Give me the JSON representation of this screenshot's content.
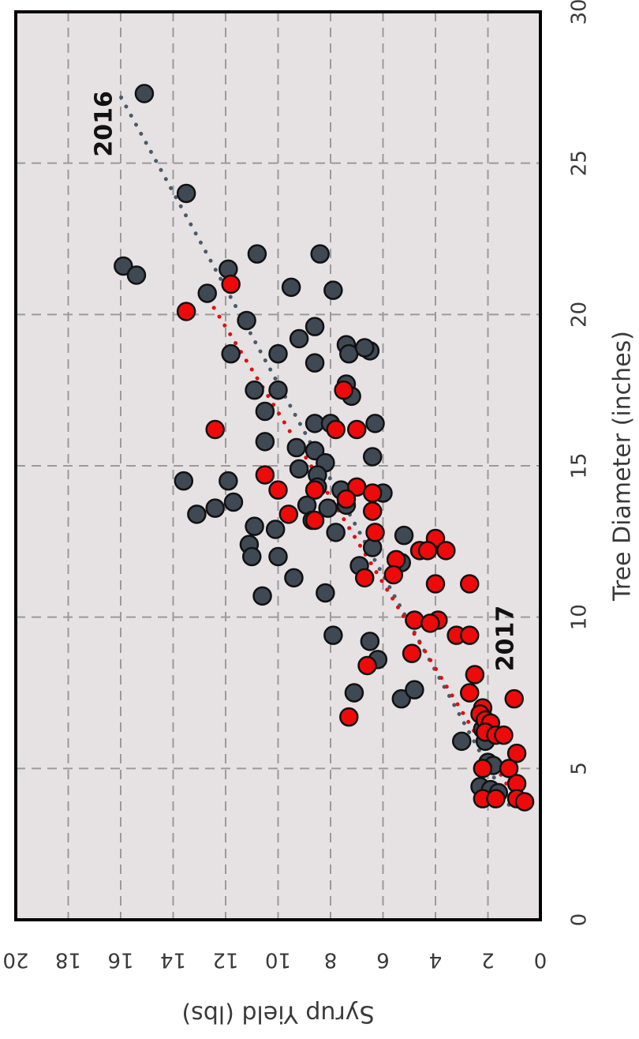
{
  "chart_data": {
    "type": "scatter",
    "title": "",
    "xlabel": "Tree Diameter (inches)",
    "ylabel": "Syrup Yield (lbs)",
    "xlim": [
      0,
      30
    ],
    "ylim": [
      0,
      20
    ],
    "xticks": [
      "0",
      "5",
      "10",
      "15",
      "20",
      "25",
      "30"
    ],
    "yticks": [
      "0",
      "2",
      "4",
      "6",
      "8",
      "10",
      "12",
      "14",
      "16",
      "18",
      "20"
    ],
    "grid": true,
    "orientation": "rotated 90 degrees (x axis runs vertically, y axis runs horizontally, text upside down)",
    "annotations": [
      {
        "text": "2016",
        "x": 26.3,
        "y": 16.6
      },
      {
        "text": "2017",
        "x": 9.3,
        "y": 1.3
      }
    ],
    "series": [
      {
        "color": "#3f4954",
        "points": [
          [
            27.3,
            15.1
          ],
          [
            24.0,
            13.5
          ],
          [
            21.6,
            15.9
          ],
          [
            21.3,
            15.4
          ],
          [
            22.0,
            10.8
          ],
          [
            22.0,
            8.4
          ],
          [
            21.5,
            11.9
          ],
          [
            20.7,
            12.7
          ],
          [
            20.9,
            9.5
          ],
          [
            20.8,
            7.9
          ],
          [
            19.8,
            11.2
          ],
          [
            19.6,
            8.6
          ],
          [
            19.2,
            9.2
          ],
          [
            19.0,
            7.4
          ],
          [
            18.7,
            11.8
          ],
          [
            18.7,
            10.0
          ],
          [
            18.4,
            8.6
          ],
          [
            18.7,
            7.3
          ],
          [
            18.8,
            6.5
          ],
          [
            18.9,
            6.7
          ],
          [
            17.7,
            7.4
          ],
          [
            17.5,
            10.9
          ],
          [
            17.5,
            10.0
          ],
          [
            17.3,
            7.2
          ],
          [
            16.8,
            10.5
          ],
          [
            16.4,
            8.6
          ],
          [
            16.4,
            8.0
          ],
          [
            16.4,
            6.3
          ],
          [
            15.8,
            10.5
          ],
          [
            15.6,
            9.3
          ],
          [
            15.5,
            8.6
          ],
          [
            15.3,
            6.4
          ],
          [
            15.1,
            8.2
          ],
          [
            14.9,
            9.2
          ],
          [
            14.7,
            8.5
          ],
          [
            14.5,
            13.6
          ],
          [
            14.5,
            11.9
          ],
          [
            14.3,
            8.5
          ],
          [
            14.2,
            7.6
          ],
          [
            14.1,
            6.0
          ],
          [
            13.8,
            11.7
          ],
          [
            13.6,
            12.4
          ],
          [
            13.7,
            8.9
          ],
          [
            13.6,
            8.1
          ],
          [
            13.7,
            7.4
          ],
          [
            13.4,
            13.1
          ],
          [
            13.2,
            8.7
          ],
          [
            13.0,
            10.9
          ],
          [
            12.9,
            10.1
          ],
          [
            12.8,
            7.8
          ],
          [
            12.7,
            5.2
          ],
          [
            12.4,
            11.1
          ],
          [
            12.3,
            6.4
          ],
          [
            12.0,
            11.0
          ],
          [
            12.0,
            10.0
          ],
          [
            11.8,
            5.3
          ],
          [
            11.7,
            6.9
          ],
          [
            11.3,
            9.4
          ],
          [
            10.8,
            8.2
          ],
          [
            10.7,
            10.6
          ],
          [
            9.4,
            7.9
          ],
          [
            9.2,
            6.5
          ],
          [
            8.6,
            6.2
          ],
          [
            7.5,
            7.1
          ],
          [
            7.3,
            5.3
          ],
          [
            7.6,
            4.8
          ],
          [
            5.9,
            3.0
          ],
          [
            6.3,
            2.2
          ],
          [
            5.9,
            2.1
          ],
          [
            5.2,
            2.0
          ],
          [
            5.1,
            1.8
          ],
          [
            4.4,
            2.3
          ],
          [
            4.3,
            1.9
          ],
          [
            4.2,
            1.6
          ]
        ]
      },
      {
        "color": "#ee0a0a",
        "points": [
          [
            21.0,
            11.8
          ],
          [
            20.1,
            13.5
          ],
          [
            17.5,
            7.5
          ],
          [
            16.2,
            12.4
          ],
          [
            16.2,
            7.8
          ],
          [
            16.2,
            7.0
          ],
          [
            14.7,
            10.5
          ],
          [
            14.3,
            7.0
          ],
          [
            14.2,
            8.6
          ],
          [
            14.2,
            10.0
          ],
          [
            14.1,
            6.4
          ],
          [
            13.9,
            7.4
          ],
          [
            13.5,
            6.4
          ],
          [
            13.4,
            9.6
          ],
          [
            13.2,
            8.6
          ],
          [
            12.8,
            6.3
          ],
          [
            12.6,
            4.0
          ],
          [
            12.2,
            4.6
          ],
          [
            12.2,
            4.3
          ],
          [
            12.2,
            3.6
          ],
          [
            11.9,
            5.5
          ],
          [
            11.4,
            5.6
          ],
          [
            11.3,
            6.7
          ],
          [
            11.1,
            4.0
          ],
          [
            11.1,
            2.7
          ],
          [
            9.9,
            4.8
          ],
          [
            9.9,
            3.9
          ],
          [
            9.8,
            4.2
          ],
          [
            9.4,
            3.2
          ],
          [
            9.4,
            2.7
          ],
          [
            8.8,
            4.9
          ],
          [
            8.4,
            6.6
          ],
          [
            8.1,
            2.5
          ],
          [
            7.5,
            2.7
          ],
          [
            7.3,
            1.0
          ],
          [
            7.0,
            2.2
          ],
          [
            6.8,
            2.3
          ],
          [
            6.7,
            7.3
          ],
          [
            6.6,
            2.1
          ],
          [
            6.5,
            1.9
          ],
          [
            6.2,
            2.1
          ],
          [
            6.1,
            1.7
          ],
          [
            6.1,
            1.4
          ],
          [
            5.5,
            0.9
          ],
          [
            5.0,
            2.2
          ],
          [
            5.0,
            1.2
          ],
          [
            4.5,
            0.9
          ],
          [
            4.0,
            2.2
          ],
          [
            4.0,
            1.7
          ],
          [
            4.0,
            0.9
          ],
          [
            3.9,
            0.6
          ]
        ]
      }
    ],
    "trendlines": [
      {
        "color": "#4a5a6a",
        "style": "dotted",
        "from": [
          3.8,
          1.2
        ],
        "to": [
          27.2,
          16.0
        ]
      },
      {
        "color": "#e01010",
        "style": "dotted",
        "from": [
          4.5,
          1.3
        ],
        "to": [
          21.0,
          13.0
        ]
      }
    ]
  }
}
